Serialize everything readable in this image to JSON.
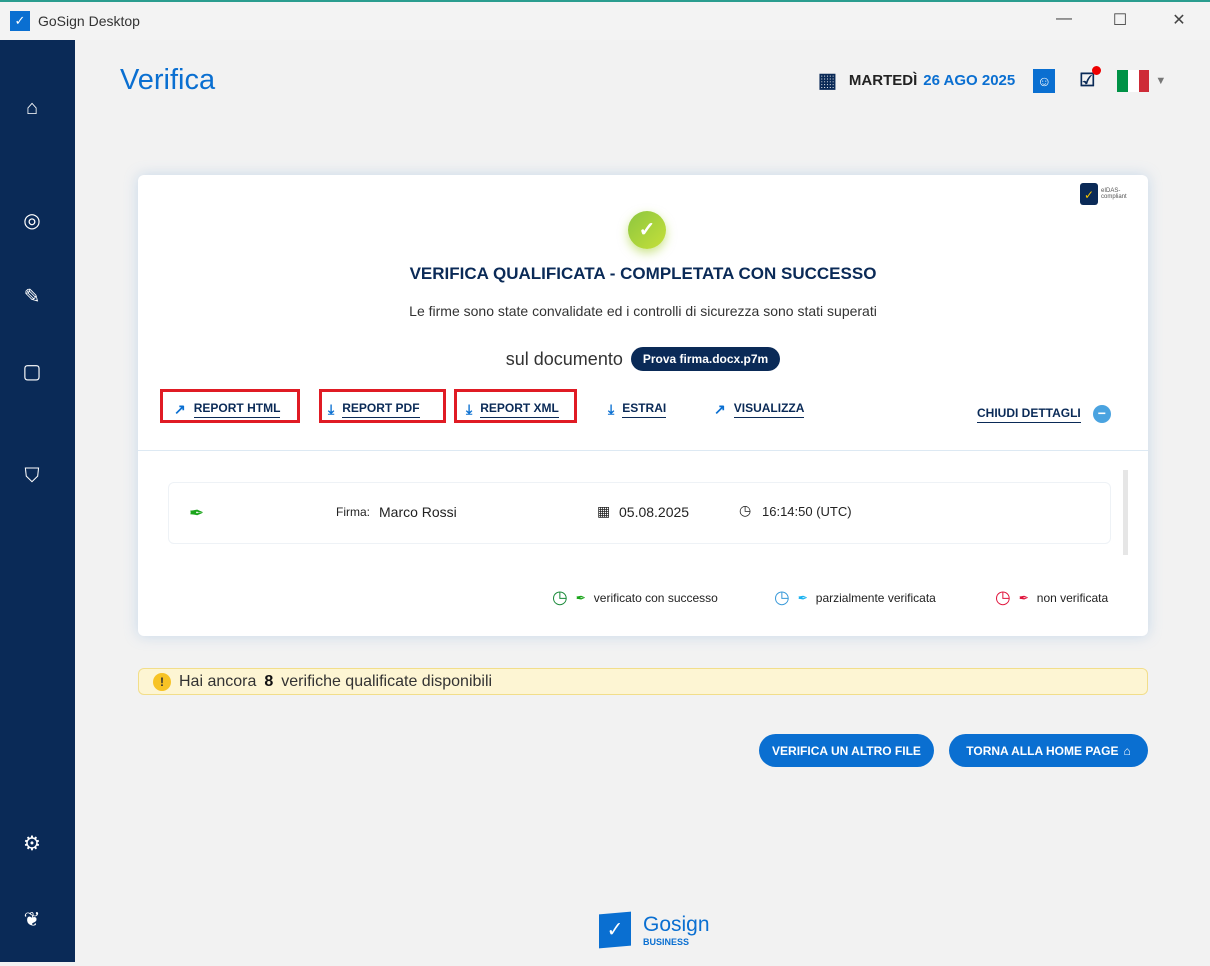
{
  "window": {
    "title": "GoSign Desktop",
    "controls": [
      "minimize",
      "maximize",
      "close"
    ]
  },
  "sidebar": {
    "items": [
      {
        "icon": "home-icon"
      },
      {
        "icon": "user-icon"
      },
      {
        "icon": "sign-icon"
      },
      {
        "icon": "bag-icon"
      },
      {
        "icon": "shield-check-icon"
      },
      {
        "icon": "gear-icon"
      },
      {
        "icon": "leaf-icon"
      }
    ]
  },
  "header": {
    "title": "Verifica",
    "day": "MARTEDÌ",
    "date": "26 AGO 2025"
  },
  "card": {
    "badge": "eIDAS-compliant",
    "headline": "VERIFICA QUALIFICATA - COMPLETATA CON SUCCESSO",
    "subline": "Le firme sono state convalidate ed i controlli di sicurezza sono stati superati",
    "doc_label": "sul documento",
    "doc_name": "Prova firma.docx.p7m",
    "actions": {
      "report_html": "REPORT HTML",
      "report_pdf": "REPORT PDF",
      "report_xml": "REPORT XML",
      "estrai": "ESTRAI",
      "visualizza": "VISUALIZZA",
      "chiudi": "CHIUDI DETTAGLI"
    },
    "signature": {
      "label": "Firma:",
      "name": "Marco Rossi",
      "date": "05.08.2025",
      "time": "16:14:50 (UTC)",
      "status_color": "#1aa51a"
    },
    "legend": [
      {
        "label": "verificato con successo",
        "color": "#1aa51a"
      },
      {
        "label": "parzialmente verificata",
        "color": "#1ab2f0"
      },
      {
        "label": "non verificata",
        "color": "#e0143c"
      }
    ]
  },
  "warning": {
    "prefix": "Hai ancora",
    "count": "8",
    "suffix": "verifiche qualificate disponibili"
  },
  "buttons": {
    "verify_other": "VERIFICA UN ALTRO FILE",
    "home": "TORNA ALLA HOME PAGE"
  },
  "footer": {
    "brand": "Gosign",
    "sub": "BUSINESS"
  }
}
